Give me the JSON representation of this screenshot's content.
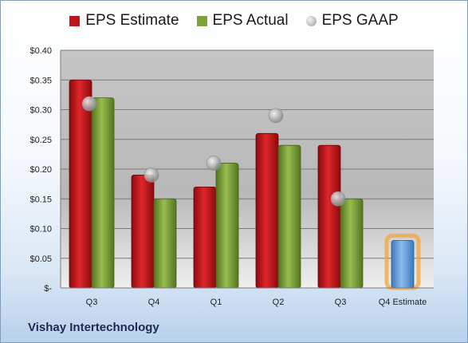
{
  "company": "Vishay Intertechnology",
  "chart_data": {
    "type": "bar",
    "categories": [
      "Q3",
      "Q4",
      "Q1",
      "Q2",
      "Q3",
      "Q4 Estimate"
    ],
    "series": [
      {
        "name": "EPS Estimate",
        "values": [
          0.35,
          0.19,
          0.17,
          0.26,
          0.24,
          null
        ],
        "color": "#c0151b"
      },
      {
        "name": "EPS Actual",
        "values": [
          0.32,
          0.15,
          0.21,
          0.24,
          0.15,
          null
        ],
        "color": "#7fa33a"
      },
      {
        "name": "EPS GAAP",
        "values": [
          0.31,
          0.19,
          0.21,
          0.29,
          0.15,
          null
        ],
        "color": "#a8a8a8",
        "marker": "circle"
      }
    ],
    "highlight": {
      "category": "Q4 Estimate",
      "value": 0.08,
      "color": "#6fa3dc",
      "glow": "#f2a53b"
    },
    "y_ticks": [
      "$-",
      "$0.05",
      "$0.10",
      "$0.15",
      "$0.20",
      "$0.25",
      "$0.30",
      "$0.35",
      "$0.40"
    ],
    "ylim": [
      0,
      0.4
    ],
    "grid": true,
    "legend_position": "top"
  }
}
